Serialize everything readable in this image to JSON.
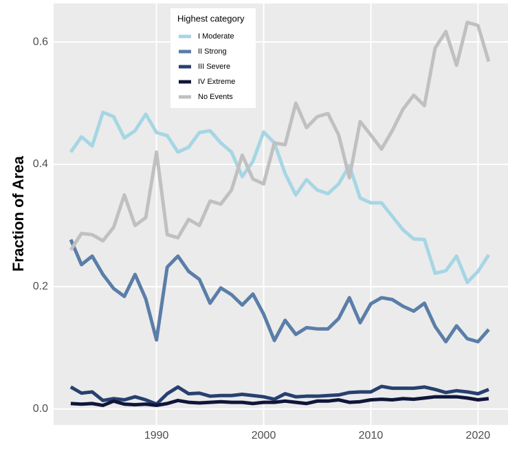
{
  "chart_data": {
    "type": "line",
    "y_label": "Fraction of Area",
    "legend_title": "Highest category",
    "legend_position": "top-left",
    "grid": true,
    "x": [
      1982,
      1983,
      1984,
      1985,
      1986,
      1987,
      1988,
      1989,
      1990,
      1991,
      1992,
      1993,
      1994,
      1995,
      1996,
      1997,
      1998,
      1999,
      2000,
      2001,
      2002,
      2003,
      2004,
      2005,
      2006,
      2007,
      2008,
      2009,
      2010,
      2011,
      2012,
      2013,
      2014,
      2015,
      2016,
      2017,
      2018,
      2019,
      2020,
      2021
    ],
    "xlim": [
      1980.4,
      2022.8
    ],
    "xticks": [
      1990,
      2000,
      2010,
      2020
    ],
    "ylim": [
      -0.026,
      0.663
    ],
    "yticks": [
      {
        "value": 0,
        "label": "0.0"
      },
      0.2,
      0.4,
      0.6
    ],
    "series": [
      {
        "name": "I Moderate",
        "color": "#a6d6e4",
        "values": [
          0.42,
          0.445,
          0.43,
          0.485,
          0.478,
          0.443,
          0.455,
          0.482,
          0.452,
          0.447,
          0.42,
          0.428,
          0.452,
          0.455,
          0.435,
          0.42,
          0.38,
          0.405,
          0.453,
          0.435,
          0.385,
          0.35,
          0.375,
          0.358,
          0.352,
          0.368,
          0.398,
          0.345,
          0.337,
          0.337,
          0.315,
          0.293,
          0.278,
          0.277,
          0.222,
          0.226,
          0.25,
          0.207,
          0.225,
          0.252
        ]
      },
      {
        "name": "II Strong",
        "color": "#5a7ea8",
        "values": [
          0.277,
          0.236,
          0.25,
          0.22,
          0.197,
          0.184,
          0.22,
          0.18,
          0.113,
          0.232,
          0.25,
          0.225,
          0.212,
          0.173,
          0.198,
          0.187,
          0.17,
          0.188,
          0.155,
          0.112,
          0.145,
          0.122,
          0.133,
          0.131,
          0.131,
          0.148,
          0.182,
          0.141,
          0.172,
          0.182,
          0.179,
          0.168,
          0.16,
          0.173,
          0.135,
          0.11,
          0.136,
          0.115,
          0.11,
          0.13
        ]
      },
      {
        "name": "III Severe",
        "color": "#27406f",
        "values": [
          0.036,
          0.026,
          0.028,
          0.014,
          0.017,
          0.015,
          0.02,
          0.015,
          0.008,
          0.025,
          0.036,
          0.025,
          0.026,
          0.021,
          0.022,
          0.022,
          0.024,
          0.022,
          0.02,
          0.016,
          0.025,
          0.02,
          0.021,
          0.021,
          0.022,
          0.023,
          0.027,
          0.028,
          0.028,
          0.037,
          0.034,
          0.034,
          0.034,
          0.036,
          0.032,
          0.027,
          0.03,
          0.028,
          0.025,
          0.032
        ]
      },
      {
        "name": "IV Extreme",
        "color": "#10163a",
        "values": [
          0.009,
          0.008,
          0.009,
          0.006,
          0.013,
          0.008,
          0.007,
          0.008,
          0.006,
          0.009,
          0.014,
          0.011,
          0.01,
          0.011,
          0.012,
          0.011,
          0.011,
          0.009,
          0.011,
          0.011,
          0.013,
          0.011,
          0.009,
          0.013,
          0.013,
          0.015,
          0.011,
          0.012,
          0.015,
          0.016,
          0.015,
          0.017,
          0.016,
          0.018,
          0.02,
          0.02,
          0.02,
          0.018,
          0.015,
          0.017
        ]
      },
      {
        "name": "No Events",
        "color": "#c0c0c0",
        "values": [
          0.26,
          0.287,
          0.285,
          0.275,
          0.297,
          0.35,
          0.3,
          0.313,
          0.42,
          0.285,
          0.28,
          0.31,
          0.3,
          0.34,
          0.335,
          0.358,
          0.415,
          0.376,
          0.368,
          0.435,
          0.432,
          0.5,
          0.46,
          0.478,
          0.483,
          0.448,
          0.378,
          0.47,
          0.448,
          0.425,
          0.455,
          0.49,
          0.513,
          0.496,
          0.59,
          0.617,
          0.562,
          0.632,
          0.627,
          0.568
        ]
      }
    ]
  }
}
